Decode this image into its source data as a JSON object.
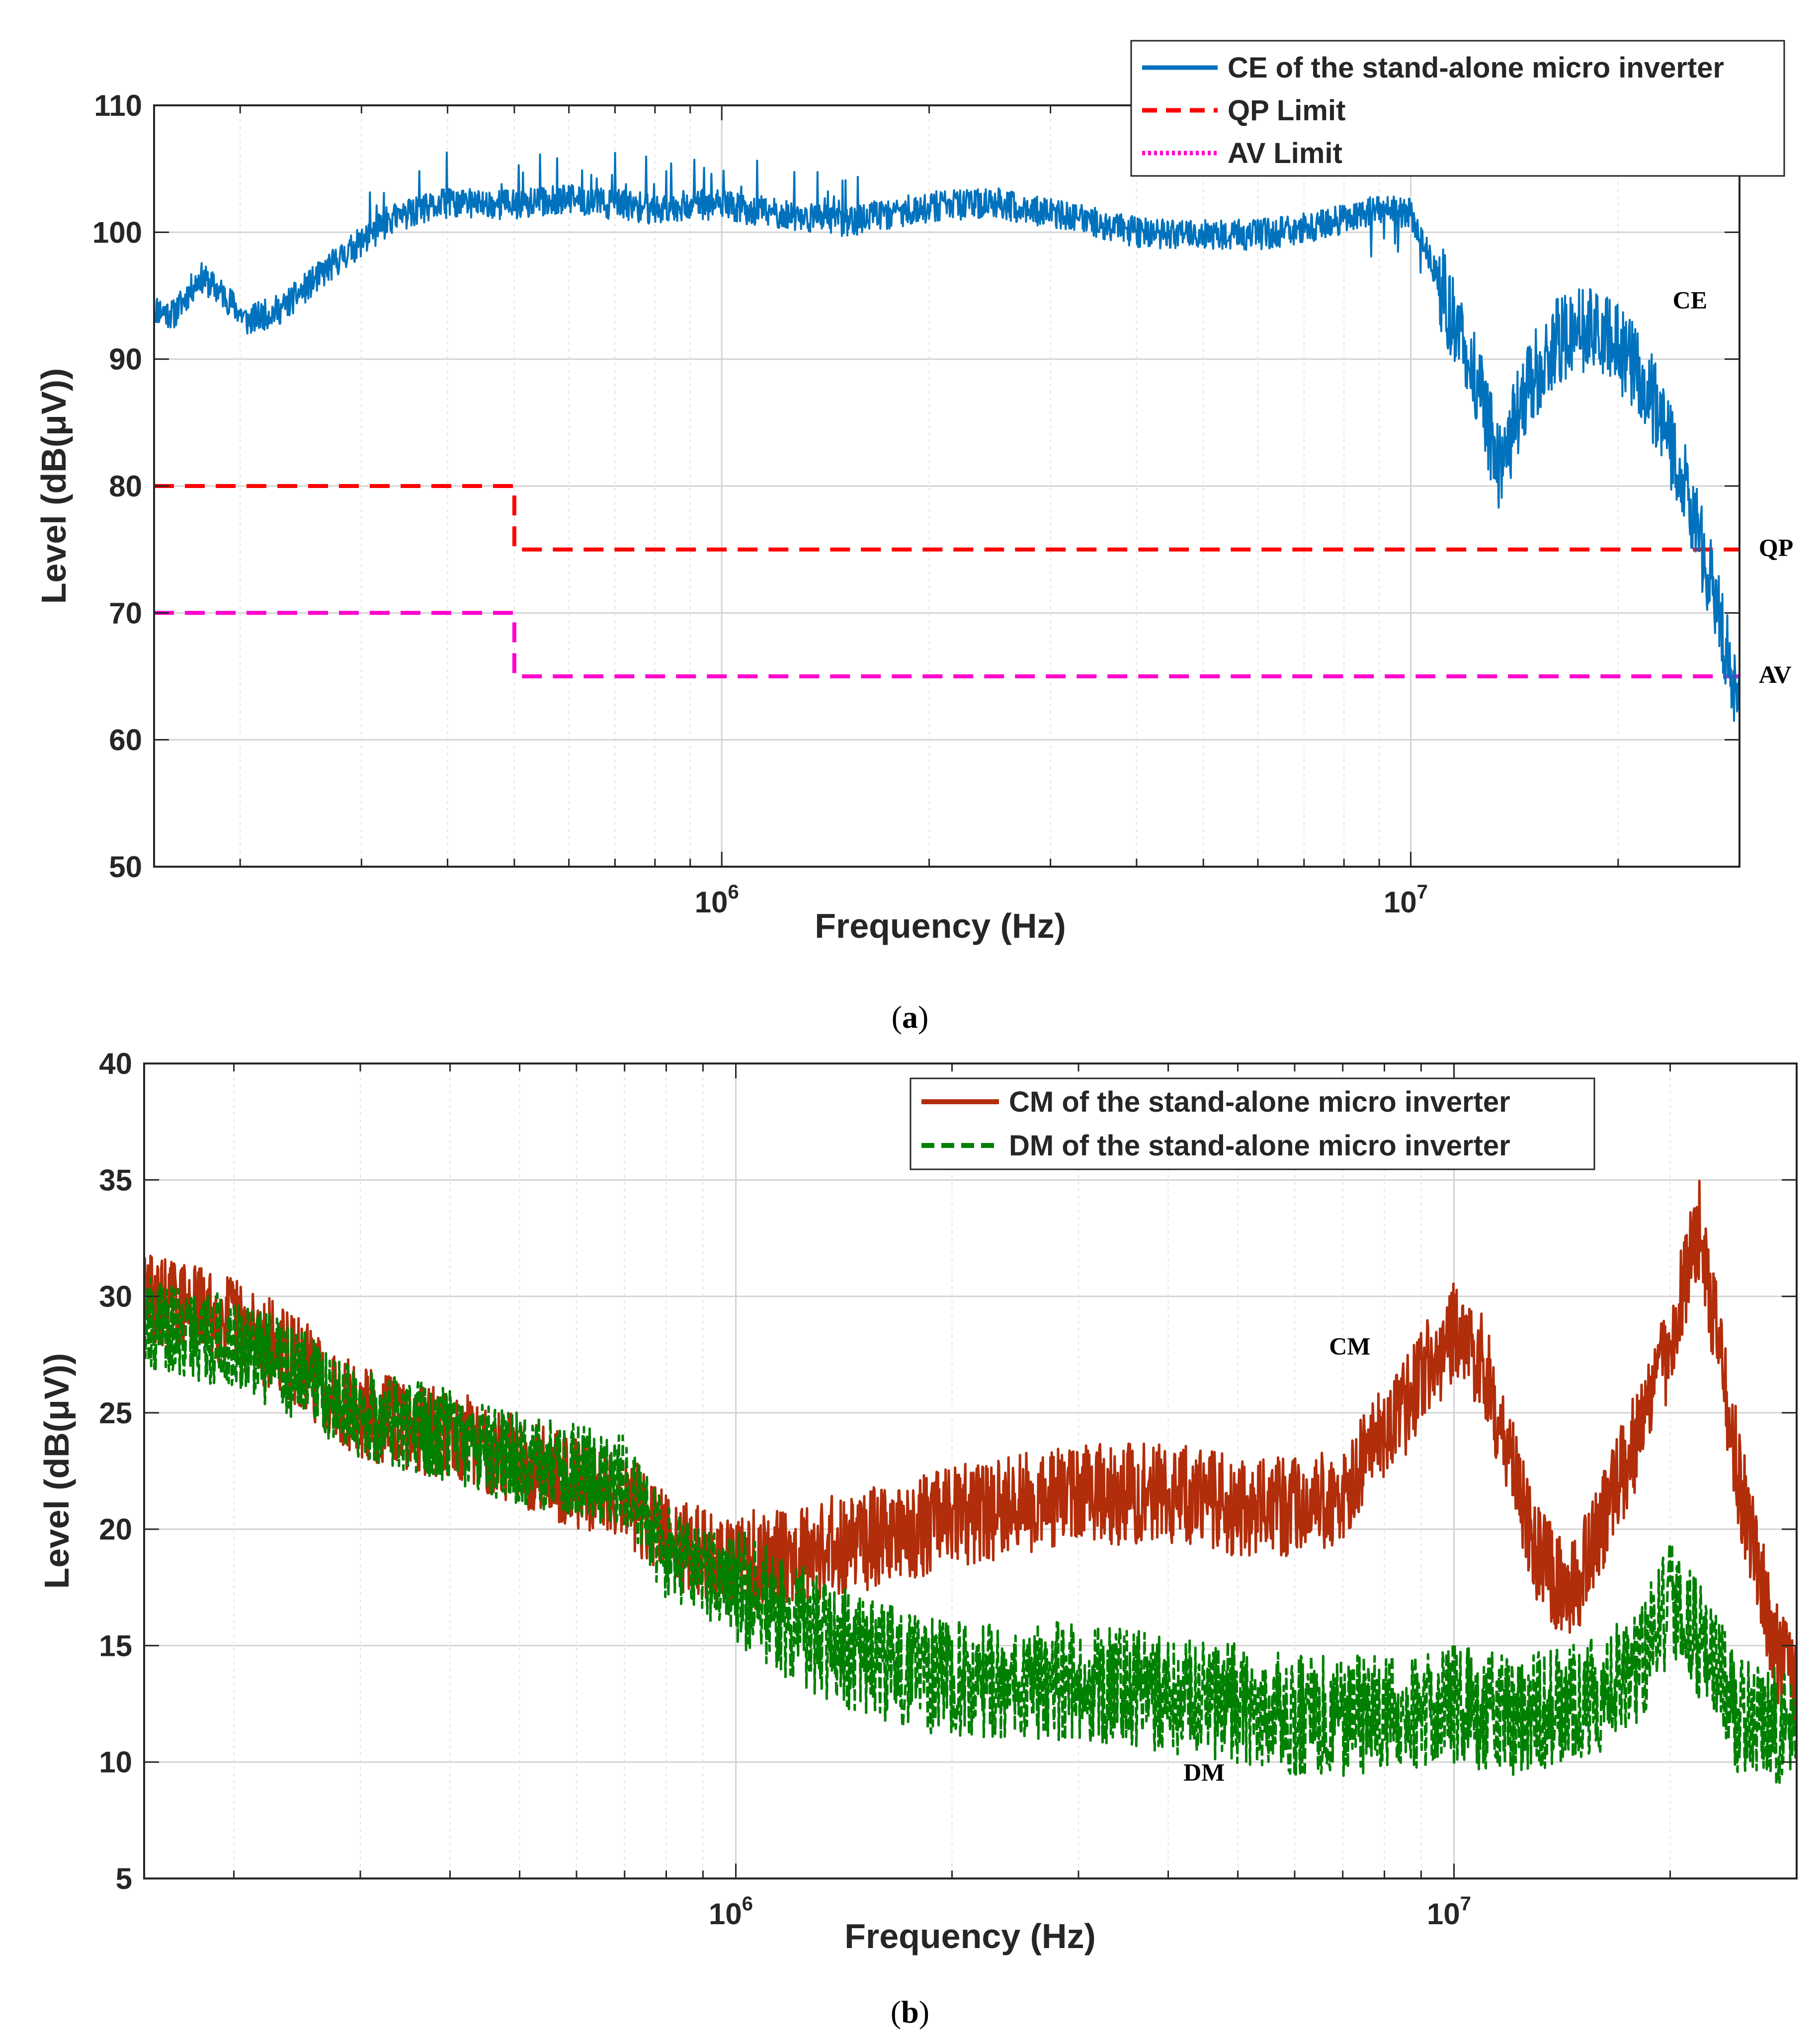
{
  "chart_data": [
    {
      "type": "line",
      "caption_open": "(",
      "caption_letter": "a",
      "caption_close": ")",
      "xlabel": "Frequency (Hz)",
      "ylabel": "Level (dB(μV))",
      "xscale": "log",
      "xlim": [
        150000,
        30000000
      ],
      "ylim": [
        50,
        110
      ],
      "yticks": [
        50,
        60,
        70,
        80,
        90,
        100,
        110
      ],
      "xtick_labels": [
        {
          "value": 1000000,
          "base": "10",
          "exp": "6"
        },
        {
          "value": 10000000,
          "base": "10",
          "exp": "7"
        }
      ],
      "grid": true,
      "legend_position": "top-right",
      "series": [
        {
          "name": "CE of the stand-alone micro inverter",
          "style": "solid",
          "color": "#0072BD",
          "noisy": true,
          "x": [
            150000,
            160000,
            175000,
            190000,
            205000,
            230000,
            280000,
            330000,
            400000,
            500000,
            600000,
            700000,
            800000,
            900000,
            1000000,
            1200000,
            1500000,
            2000000,
            2500000,
            3000000,
            4000000,
            5000000,
            6000000,
            7000000,
            8000000,
            9000000,
            10000000,
            11000000,
            12500000,
            13500000,
            14500000,
            16000000,
            18000000,
            20000000,
            22000000,
            25000000,
            28000000,
            30000000
          ],
          "y": [
            94,
            93.5,
            96.5,
            95,
            93,
            94,
            98,
            101,
            102.3,
            102.2,
            102.6,
            102.2,
            101.8,
            102.2,
            102.1,
            101.5,
            100.8,
            102,
            102.3,
            101.5,
            100,
            99.8,
            99.8,
            100.3,
            101,
            101.8,
            101.5,
            96,
            88,
            81,
            87,
            91,
            92.5,
            91,
            88,
            80,
            70,
            63
          ]
        },
        {
          "name": "QP Limit",
          "style": "dashed",
          "color": "#FF0000",
          "x": [
            150000,
            500000,
            500000,
            30000000
          ],
          "y": [
            80,
            80,
            75,
            75
          ]
        },
        {
          "name": "AV Limit",
          "style": "dashed",
          "color": "#FF00CC",
          "x": [
            150000,
            500000,
            500000,
            30000000
          ],
          "y": [
            70,
            70,
            65,
            65
          ]
        }
      ],
      "annotations": [
        {
          "text": "CE",
          "x": 24000000,
          "y": 94
        },
        {
          "text": "QP",
          "x": 32000000,
          "y": 74.5
        },
        {
          "text": "AV",
          "x": 32000000,
          "y": 64.5
        }
      ]
    },
    {
      "type": "line",
      "caption_open": "(",
      "caption_letter": "b",
      "caption_close": ")",
      "xlabel": "Frequency (Hz)",
      "ylabel": "Level (dB(μV))",
      "xscale": "log",
      "xlim": [
        150000,
        30000000
      ],
      "ylim": [
        5,
        40
      ],
      "yticks": [
        5,
        10,
        15,
        20,
        25,
        30,
        35,
        40
      ],
      "xtick_labels": [
        {
          "value": 1000000,
          "base": "10",
          "exp": "6"
        },
        {
          "value": 10000000,
          "base": "10",
          "exp": "7"
        }
      ],
      "grid": true,
      "legend_position": "top-right",
      "series": [
        {
          "name": "CM of the stand-alone micro inverter",
          "style": "solid",
          "color": "#B22D0A",
          "noisy": true,
          "x": [
            150000,
            170000,
            200000,
            250000,
            300000,
            400000,
            500000,
            600000,
            700000,
            800000,
            1000000,
            1200000,
            1500000,
            2000000,
            3000000,
            4000000,
            5000000,
            6000000,
            7000000,
            8000000,
            10000000,
            11000000,
            13000000,
            14500000,
            16000000,
            18000000,
            20000000,
            22000000,
            25000000,
            28000000,
            30000000
          ],
          "y": [
            30,
            29.5,
            29,
            27,
            25,
            24,
            23,
            22,
            21.5,
            19.5,
            18.5,
            19,
            19.5,
            20.5,
            21.5,
            21.5,
            21,
            21,
            21.5,
            24,
            28.5,
            27,
            19,
            17,
            20,
            24,
            28,
            33,
            22,
            15,
            13
          ]
        },
        {
          "name": "DM of the stand-alone micro inverter",
          "style": "dashed",
          "color": "#008000",
          "noisy": true,
          "x": [
            150000,
            170000,
            200000,
            250000,
            300000,
            400000,
            500000,
            600000,
            700000,
            800000,
            1000000,
            1200000,
            1500000,
            2000000,
            3000000,
            4000000,
            5000000,
            6000000,
            8000000,
            10000000,
            12000000,
            15000000,
            18000000,
            20000000,
            22000000,
            25000000,
            28000000,
            30000000
          ],
          "y": [
            29,
            28.5,
            28,
            26.5,
            25,
            24,
            23,
            22.5,
            22,
            19,
            17.5,
            16,
            14.5,
            13.5,
            13.5,
            13,
            12.5,
            12,
            12,
            12.5,
            12,
            12.5,
            14,
            17,
            15,
            12,
            11.5,
            11
          ]
        }
      ],
      "annotations": [
        {
          "text": "CM",
          "x": 6700000,
          "y": 27.5
        },
        {
          "text": "DM",
          "x": 4200000,
          "y": 9.2
        }
      ]
    }
  ]
}
